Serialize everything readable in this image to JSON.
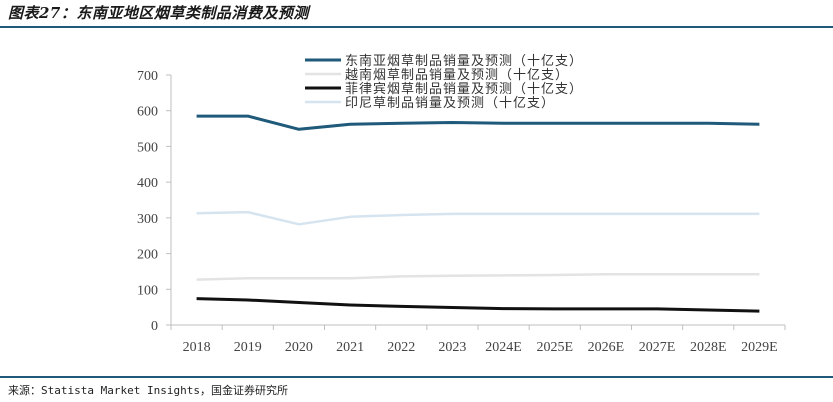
{
  "header": {
    "title": "图表27：东南亚地区烟草类制品消费及预测"
  },
  "footer": {
    "source": "来源：Statista Market Insights，国金证券研究所"
  },
  "chart_data": {
    "type": "line",
    "title": "",
    "xlabel": "",
    "ylabel": "",
    "categories": [
      "2018",
      "2019",
      "2020",
      "2021",
      "2022",
      "2023",
      "2024E",
      "2025E",
      "2026E",
      "2027E",
      "2028E",
      "2029E"
    ],
    "ylim": [
      0,
      700
    ],
    "yticks": [
      0,
      100,
      200,
      300,
      400,
      500,
      600,
      700
    ],
    "grid": false,
    "legend_position": "top-center",
    "series": [
      {
        "name": "东南亚烟草制品销量及预测（十亿支）",
        "color": "#1f5a7a",
        "values": [
          585,
          585,
          548,
          562,
          565,
          567,
          565,
          565,
          565,
          565,
          565,
          562
        ]
      },
      {
        "name": "越南烟草制品销量及预测（十亿支）",
        "color": "#e3e3e3",
        "values": [
          127,
          131,
          131,
          131,
          136,
          138,
          139,
          140,
          142,
          142,
          142,
          142
        ]
      },
      {
        "name": "菲律宾烟草制品销量及预测（十亿支）",
        "color": "#111111",
        "values": [
          74,
          70,
          63,
          56,
          52,
          49,
          46,
          45,
          45,
          45,
          42,
          39
        ]
      },
      {
        "name": "印尼草制品销量及预测（十亿支）",
        "color": "#d6e4f0",
        "values": [
          313,
          316,
          282,
          303,
          308,
          311,
          311,
          311,
          311,
          311,
          311,
          311
        ]
      }
    ]
  }
}
